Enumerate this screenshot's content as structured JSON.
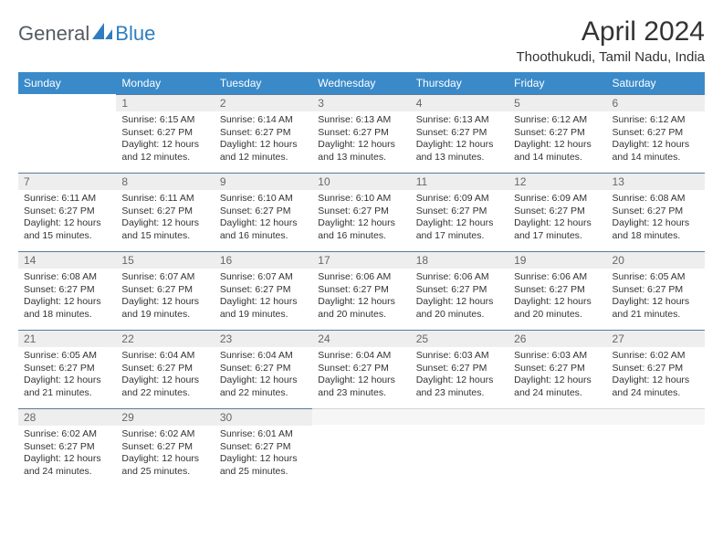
{
  "brand": {
    "left": "General",
    "right": "Blue"
  },
  "title": "April 2024",
  "location": "Thoothukudi, Tamil Nadu, India",
  "colors": {
    "header_bg": "#3a8ac9",
    "header_text": "#ffffff",
    "daynum_bg": "#eeeeee",
    "daynum_text": "#676767",
    "rule": "#5a7a99",
    "body_text": "#333333",
    "logo_gray": "#555b63",
    "logo_blue": "#2f7dc0"
  },
  "weekdays": [
    "Sunday",
    "Monday",
    "Tuesday",
    "Wednesday",
    "Thursday",
    "Friday",
    "Saturday"
  ],
  "weeks": [
    [
      null,
      {
        "n": "1",
        "sr": "6:15 AM",
        "ss": "6:27 PM",
        "dl": "12 hours and 12 minutes."
      },
      {
        "n": "2",
        "sr": "6:14 AM",
        "ss": "6:27 PM",
        "dl": "12 hours and 12 minutes."
      },
      {
        "n": "3",
        "sr": "6:13 AM",
        "ss": "6:27 PM",
        "dl": "12 hours and 13 minutes."
      },
      {
        "n": "4",
        "sr": "6:13 AM",
        "ss": "6:27 PM",
        "dl": "12 hours and 13 minutes."
      },
      {
        "n": "5",
        "sr": "6:12 AM",
        "ss": "6:27 PM",
        "dl": "12 hours and 14 minutes."
      },
      {
        "n": "6",
        "sr": "6:12 AM",
        "ss": "6:27 PM",
        "dl": "12 hours and 14 minutes."
      }
    ],
    [
      {
        "n": "7",
        "sr": "6:11 AM",
        "ss": "6:27 PM",
        "dl": "12 hours and 15 minutes."
      },
      {
        "n": "8",
        "sr": "6:11 AM",
        "ss": "6:27 PM",
        "dl": "12 hours and 15 minutes."
      },
      {
        "n": "9",
        "sr": "6:10 AM",
        "ss": "6:27 PM",
        "dl": "12 hours and 16 minutes."
      },
      {
        "n": "10",
        "sr": "6:10 AM",
        "ss": "6:27 PM",
        "dl": "12 hours and 16 minutes."
      },
      {
        "n": "11",
        "sr": "6:09 AM",
        "ss": "6:27 PM",
        "dl": "12 hours and 17 minutes."
      },
      {
        "n": "12",
        "sr": "6:09 AM",
        "ss": "6:27 PM",
        "dl": "12 hours and 17 minutes."
      },
      {
        "n": "13",
        "sr": "6:08 AM",
        "ss": "6:27 PM",
        "dl": "12 hours and 18 minutes."
      }
    ],
    [
      {
        "n": "14",
        "sr": "6:08 AM",
        "ss": "6:27 PM",
        "dl": "12 hours and 18 minutes."
      },
      {
        "n": "15",
        "sr": "6:07 AM",
        "ss": "6:27 PM",
        "dl": "12 hours and 19 minutes."
      },
      {
        "n": "16",
        "sr": "6:07 AM",
        "ss": "6:27 PM",
        "dl": "12 hours and 19 minutes."
      },
      {
        "n": "17",
        "sr": "6:06 AM",
        "ss": "6:27 PM",
        "dl": "12 hours and 20 minutes."
      },
      {
        "n": "18",
        "sr": "6:06 AM",
        "ss": "6:27 PM",
        "dl": "12 hours and 20 minutes."
      },
      {
        "n": "19",
        "sr": "6:06 AM",
        "ss": "6:27 PM",
        "dl": "12 hours and 20 minutes."
      },
      {
        "n": "20",
        "sr": "6:05 AM",
        "ss": "6:27 PM",
        "dl": "12 hours and 21 minutes."
      }
    ],
    [
      {
        "n": "21",
        "sr": "6:05 AM",
        "ss": "6:27 PM",
        "dl": "12 hours and 21 minutes."
      },
      {
        "n": "22",
        "sr": "6:04 AM",
        "ss": "6:27 PM",
        "dl": "12 hours and 22 minutes."
      },
      {
        "n": "23",
        "sr": "6:04 AM",
        "ss": "6:27 PM",
        "dl": "12 hours and 22 minutes."
      },
      {
        "n": "24",
        "sr": "6:04 AM",
        "ss": "6:27 PM",
        "dl": "12 hours and 23 minutes."
      },
      {
        "n": "25",
        "sr": "6:03 AM",
        "ss": "6:27 PM",
        "dl": "12 hours and 23 minutes."
      },
      {
        "n": "26",
        "sr": "6:03 AM",
        "ss": "6:27 PM",
        "dl": "12 hours and 24 minutes."
      },
      {
        "n": "27",
        "sr": "6:02 AM",
        "ss": "6:27 PM",
        "dl": "12 hours and 24 minutes."
      }
    ],
    [
      {
        "n": "28",
        "sr": "6:02 AM",
        "ss": "6:27 PM",
        "dl": "12 hours and 24 minutes."
      },
      {
        "n": "29",
        "sr": "6:02 AM",
        "ss": "6:27 PM",
        "dl": "12 hours and 25 minutes."
      },
      {
        "n": "30",
        "sr": "6:01 AM",
        "ss": "6:27 PM",
        "dl": "12 hours and 25 minutes."
      },
      "trail",
      "trail",
      "trail",
      "trail"
    ]
  ],
  "labels": {
    "sunrise": "Sunrise:",
    "sunset": "Sunset:",
    "daylight": "Daylight:"
  }
}
